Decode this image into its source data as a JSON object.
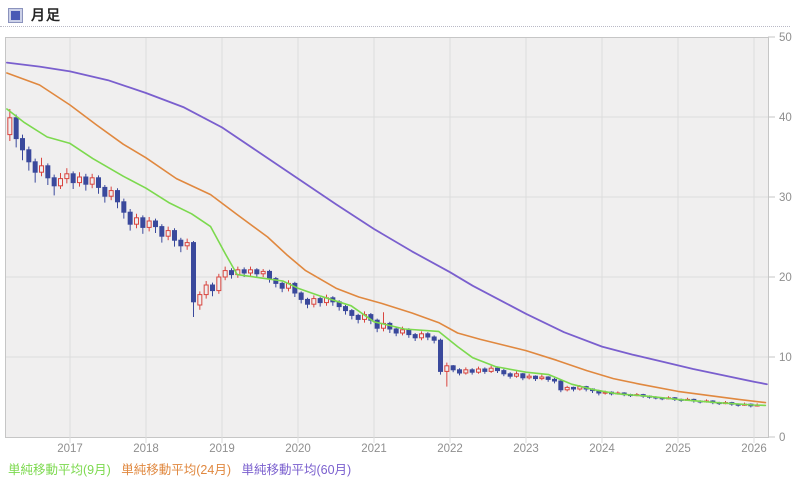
{
  "header": {
    "title": "月足"
  },
  "legend": [
    {
      "label": "単純移動平均(9月)",
      "color": "#7cd94e"
    },
    {
      "label": "単純移動平均(24月)",
      "color": "#e0883f"
    },
    {
      "label": "単純移動平均(60月)",
      "color": "#7a5fce"
    }
  ],
  "chart_data": {
    "type": "candlestick",
    "title": "月足",
    "grid": true,
    "x_axis": {
      "ticks": [
        2017,
        2018,
        2019,
        2020,
        2021,
        2022,
        2023,
        2024,
        2025,
        2026
      ]
    },
    "y_axis": {
      "min": 0,
      "max": 50,
      "ticks": [
        0,
        10,
        20,
        30,
        40,
        50
      ],
      "position": "right"
    },
    "colors": {
      "up": "#d9453f",
      "down": "#3a499c",
      "plot_bg": "#f0efef",
      "gridline": "#dcdcdc",
      "plot_border": "#c6c6c6",
      "axis_text": "#8f8f8f"
    },
    "start": {
      "year": 2016,
      "month": 3
    },
    "candles_ohlc": [
      [
        37.8,
        41.0,
        37.0,
        39.9
      ],
      [
        39.9,
        40.3,
        36.2,
        37.3
      ],
      [
        37.3,
        37.8,
        34.6,
        35.9
      ],
      [
        35.9,
        36.3,
        33.3,
        34.4
      ],
      [
        34.4,
        34.8,
        31.8,
        33.1
      ],
      [
        33.1,
        34.9,
        32.6,
        33.9
      ],
      [
        33.9,
        34.2,
        31.5,
        32.4
      ],
      [
        32.4,
        32.8,
        30.2,
        31.4
      ],
      [
        31.4,
        33.0,
        31.0,
        32.3
      ],
      [
        32.3,
        33.6,
        31.7,
        32.9
      ],
      [
        32.9,
        33.2,
        31.0,
        31.8
      ],
      [
        31.8,
        33.1,
        31.3,
        32.5
      ],
      [
        32.5,
        32.9,
        30.8,
        31.6
      ],
      [
        31.6,
        32.9,
        31.1,
        32.4
      ],
      [
        32.4,
        32.7,
        30.4,
        31.2
      ],
      [
        31.2,
        31.5,
        29.3,
        30.1
      ],
      [
        30.1,
        31.3,
        29.6,
        30.8
      ],
      [
        30.8,
        31.1,
        28.6,
        29.4
      ],
      [
        29.4,
        29.8,
        27.3,
        28.1
      ],
      [
        28.1,
        28.5,
        25.8,
        26.6
      ],
      [
        26.6,
        27.9,
        26.1,
        27.4
      ],
      [
        27.4,
        27.7,
        25.4,
        26.2
      ],
      [
        26.2,
        27.5,
        25.7,
        27.0
      ],
      [
        27.0,
        27.3,
        25.5,
        26.3
      ],
      [
        26.3,
        26.6,
        24.3,
        25.1
      ],
      [
        25.1,
        26.3,
        24.6,
        25.8
      ],
      [
        25.8,
        26.1,
        23.8,
        24.6
      ],
      [
        24.6,
        24.9,
        23.1,
        23.9
      ],
      [
        23.9,
        24.8,
        23.4,
        24.3
      ],
      [
        24.3,
        24.5,
        15.0,
        16.9
      ],
      [
        16.5,
        18.2,
        15.9,
        17.8
      ],
      [
        17.8,
        19.5,
        17.3,
        19.0
      ],
      [
        19.0,
        19.3,
        17.6,
        18.3
      ],
      [
        18.3,
        20.4,
        17.9,
        20.0
      ],
      [
        20.0,
        21.3,
        19.6,
        20.8
      ],
      [
        20.8,
        21.1,
        19.8,
        20.3
      ],
      [
        20.3,
        21.3,
        19.9,
        20.9
      ],
      [
        20.9,
        21.2,
        20.0,
        20.5
      ],
      [
        20.5,
        21.3,
        20.1,
        20.9
      ],
      [
        20.9,
        21.1,
        19.9,
        20.4
      ],
      [
        20.4,
        21.0,
        20.0,
        20.7
      ],
      [
        20.7,
        20.9,
        19.3,
        19.8
      ],
      [
        19.8,
        20.0,
        18.7,
        19.2
      ],
      [
        19.2,
        19.4,
        18.1,
        18.6
      ],
      [
        18.6,
        19.6,
        18.2,
        19.2
      ],
      [
        19.2,
        19.4,
        17.5,
        18.0
      ],
      [
        18.0,
        18.2,
        16.7,
        17.2
      ],
      [
        17.2,
        17.4,
        16.1,
        16.6
      ],
      [
        16.6,
        17.7,
        16.2,
        17.3
      ],
      [
        17.3,
        17.5,
        16.3,
        16.8
      ],
      [
        16.8,
        17.8,
        16.4,
        17.4
      ],
      [
        17.4,
        17.6,
        16.4,
        16.9
      ],
      [
        16.9,
        17.1,
        15.8,
        16.3
      ],
      [
        16.3,
        16.5,
        15.3,
        15.8
      ],
      [
        15.8,
        16.0,
        14.7,
        15.2
      ],
      [
        15.2,
        15.4,
        14.2,
        14.7
      ],
      [
        14.7,
        15.7,
        14.3,
        15.3
      ],
      [
        15.3,
        15.5,
        14.1,
        14.6
      ],
      [
        14.6,
        14.8,
        13.1,
        13.6
      ],
      [
        13.6,
        15.6,
        13.2,
        14.2
      ],
      [
        14.2,
        14.4,
        13.0,
        13.5
      ],
      [
        13.5,
        13.7,
        12.6,
        13.0
      ],
      [
        13.0,
        13.8,
        12.7,
        13.4
      ],
      [
        13.4,
        13.6,
        12.4,
        12.8
      ],
      [
        12.8,
        13.0,
        12.0,
        12.4
      ],
      [
        12.4,
        13.2,
        12.1,
        12.9
      ],
      [
        12.9,
        13.1,
        12.1,
        12.5
      ],
      [
        12.5,
        12.7,
        11.7,
        12.1
      ],
      [
        12.1,
        12.3,
        7.8,
        8.2
      ],
      [
        8.2,
        9.3,
        6.3,
        8.9
      ],
      [
        8.9,
        9.0,
        8.1,
        8.4
      ],
      [
        8.4,
        8.6,
        7.7,
        8.0
      ],
      [
        8.0,
        8.7,
        7.8,
        8.4
      ],
      [
        8.4,
        8.6,
        7.8,
        8.1
      ],
      [
        8.1,
        8.8,
        7.9,
        8.5
      ],
      [
        8.5,
        8.7,
        7.9,
        8.2
      ],
      [
        8.2,
        8.9,
        8.0,
        8.6
      ],
      [
        8.6,
        8.8,
        8.0,
        8.3
      ],
      [
        8.3,
        8.5,
        7.6,
        7.9
      ],
      [
        7.9,
        8.1,
        7.3,
        7.6
      ],
      [
        7.6,
        8.2,
        7.4,
        7.9
      ],
      [
        7.9,
        8.0,
        7.1,
        7.4
      ],
      [
        7.4,
        7.9,
        7.2,
        7.6
      ],
      [
        7.6,
        7.7,
        7.0,
        7.3
      ],
      [
        7.3,
        7.8,
        7.1,
        7.5
      ],
      [
        7.5,
        7.6,
        6.9,
        7.2
      ],
      [
        7.2,
        7.4,
        6.7,
        7.0
      ],
      [
        7.0,
        7.1,
        5.6,
        5.9
      ],
      [
        5.9,
        6.4,
        5.7,
        6.2
      ],
      [
        6.2,
        6.3,
        5.7,
        6.0
      ],
      [
        6.0,
        6.5,
        5.8,
        6.3
      ],
      [
        6.3,
        6.4,
        5.7,
        6.0
      ],
      [
        6.0,
        6.1,
        5.5,
        5.8
      ],
      [
        5.8,
        5.9,
        5.2,
        5.5
      ],
      [
        5.5,
        5.8,
        5.3,
        5.6
      ],
      [
        5.6,
        5.7,
        5.2,
        5.4
      ],
      [
        5.4,
        5.7,
        5.3,
        5.5
      ],
      [
        5.5,
        5.6,
        5.1,
        5.3
      ],
      [
        5.3,
        5.4,
        5.0,
        5.2
      ],
      [
        5.2,
        5.5,
        5.1,
        5.3
      ],
      [
        5.3,
        5.4,
        4.9,
        5.1
      ],
      [
        5.1,
        5.2,
        4.8,
        5.0
      ],
      [
        5.0,
        5.1,
        4.7,
        4.9
      ],
      [
        4.9,
        5.0,
        4.6,
        4.8
      ],
      [
        4.8,
        5.1,
        4.7,
        4.9
      ],
      [
        4.9,
        5.0,
        4.5,
        4.7
      ],
      [
        4.7,
        4.8,
        4.4,
        4.6
      ],
      [
        4.6,
        4.9,
        4.5,
        4.7
      ],
      [
        4.7,
        4.8,
        4.3,
        4.5
      ],
      [
        4.5,
        4.6,
        4.2,
        4.4
      ],
      [
        4.4,
        4.7,
        4.3,
        4.5
      ],
      [
        4.5,
        4.6,
        4.1,
        4.3
      ],
      [
        4.3,
        4.4,
        4.0,
        4.2
      ],
      [
        4.2,
        4.5,
        4.1,
        4.3
      ],
      [
        4.3,
        4.4,
        3.9,
        4.1
      ],
      [
        4.1,
        4.2,
        3.8,
        4.0
      ],
      [
        4.0,
        4.3,
        3.9,
        4.1
      ],
      [
        4.1,
        4.2,
        3.7,
        3.9
      ],
      [
        3.9,
        4.2,
        3.8,
        4.0
      ]
    ],
    "series": [
      {
        "name": "単純移動平均(9月)",
        "color": "#7cd94e",
        "width": 1.6,
        "points": [
          [
            2016.17,
            41.0
          ],
          [
            2016.4,
            39.3
          ],
          [
            2016.7,
            37.5
          ],
          [
            2017.0,
            36.7
          ],
          [
            2017.3,
            34.8
          ],
          [
            2017.7,
            32.6
          ],
          [
            2018.0,
            31.1
          ],
          [
            2018.3,
            29.3
          ],
          [
            2018.6,
            27.9
          ],
          [
            2018.85,
            26.3
          ],
          [
            2019.05,
            22.8
          ],
          [
            2019.2,
            20.3
          ],
          [
            2019.5,
            19.9
          ],
          [
            2019.8,
            19.5
          ],
          [
            2020.0,
            18.6
          ],
          [
            2020.3,
            17.6
          ],
          [
            2020.7,
            16.4
          ],
          [
            2021.0,
            14.4
          ],
          [
            2021.4,
            13.5
          ],
          [
            2021.85,
            13.2
          ],
          [
            2022.1,
            11.3
          ],
          [
            2022.3,
            9.9
          ],
          [
            2022.6,
            8.8
          ],
          [
            2023.0,
            8.1
          ],
          [
            2023.3,
            7.8
          ],
          [
            2023.6,
            6.6
          ],
          [
            2023.9,
            5.9
          ],
          [
            2024.2,
            5.4
          ],
          [
            2024.6,
            5.1
          ],
          [
            2025.0,
            4.7
          ],
          [
            2025.5,
            4.3
          ],
          [
            2026.0,
            4.0
          ],
          [
            2026.15,
            3.95
          ]
        ]
      },
      {
        "name": "単純移動平均(24月)",
        "color": "#e0883f",
        "width": 1.6,
        "points": [
          [
            2016.17,
            45.5
          ],
          [
            2016.6,
            44.0
          ],
          [
            2017.0,
            41.5
          ],
          [
            2017.35,
            39.0
          ],
          [
            2017.7,
            36.6
          ],
          [
            2018.0,
            34.9
          ],
          [
            2018.4,
            32.3
          ],
          [
            2018.85,
            30.3
          ],
          [
            2019.2,
            27.8
          ],
          [
            2019.6,
            25.0
          ],
          [
            2019.85,
            22.8
          ],
          [
            2020.1,
            20.8
          ],
          [
            2020.5,
            18.6
          ],
          [
            2020.8,
            17.5
          ],
          [
            2021.1,
            16.7
          ],
          [
            2021.5,
            15.5
          ],
          [
            2021.85,
            14.3
          ],
          [
            2022.1,
            13.0
          ],
          [
            2022.4,
            12.2
          ],
          [
            2022.7,
            11.5
          ],
          [
            2023.0,
            10.8
          ],
          [
            2023.4,
            9.6
          ],
          [
            2023.8,
            8.3
          ],
          [
            2024.15,
            7.3
          ],
          [
            2024.5,
            6.6
          ],
          [
            2025.0,
            5.7
          ],
          [
            2025.4,
            5.2
          ],
          [
            2025.8,
            4.7
          ],
          [
            2026.15,
            4.3
          ]
        ]
      },
      {
        "name": "単純移動平均(60月)",
        "color": "#7a5fce",
        "width": 1.8,
        "points": [
          [
            2016.17,
            46.8
          ],
          [
            2016.6,
            46.3
          ],
          [
            2017.0,
            45.7
          ],
          [
            2017.5,
            44.6
          ],
          [
            2018.0,
            43.0
          ],
          [
            2018.5,
            41.2
          ],
          [
            2019.0,
            38.7
          ],
          [
            2019.5,
            35.5
          ],
          [
            2020.0,
            32.3
          ],
          [
            2020.5,
            29.1
          ],
          [
            2021.0,
            26.0
          ],
          [
            2021.5,
            23.2
          ],
          [
            2022.0,
            20.6
          ],
          [
            2022.3,
            18.9
          ],
          [
            2022.7,
            16.9
          ],
          [
            2023.0,
            15.4
          ],
          [
            2023.5,
            13.1
          ],
          [
            2024.0,
            11.3
          ],
          [
            2024.4,
            10.3
          ],
          [
            2024.8,
            9.4
          ],
          [
            2025.2,
            8.5
          ],
          [
            2025.6,
            7.7
          ],
          [
            2026.0,
            6.9
          ],
          [
            2026.17,
            6.6
          ]
        ]
      }
    ]
  }
}
